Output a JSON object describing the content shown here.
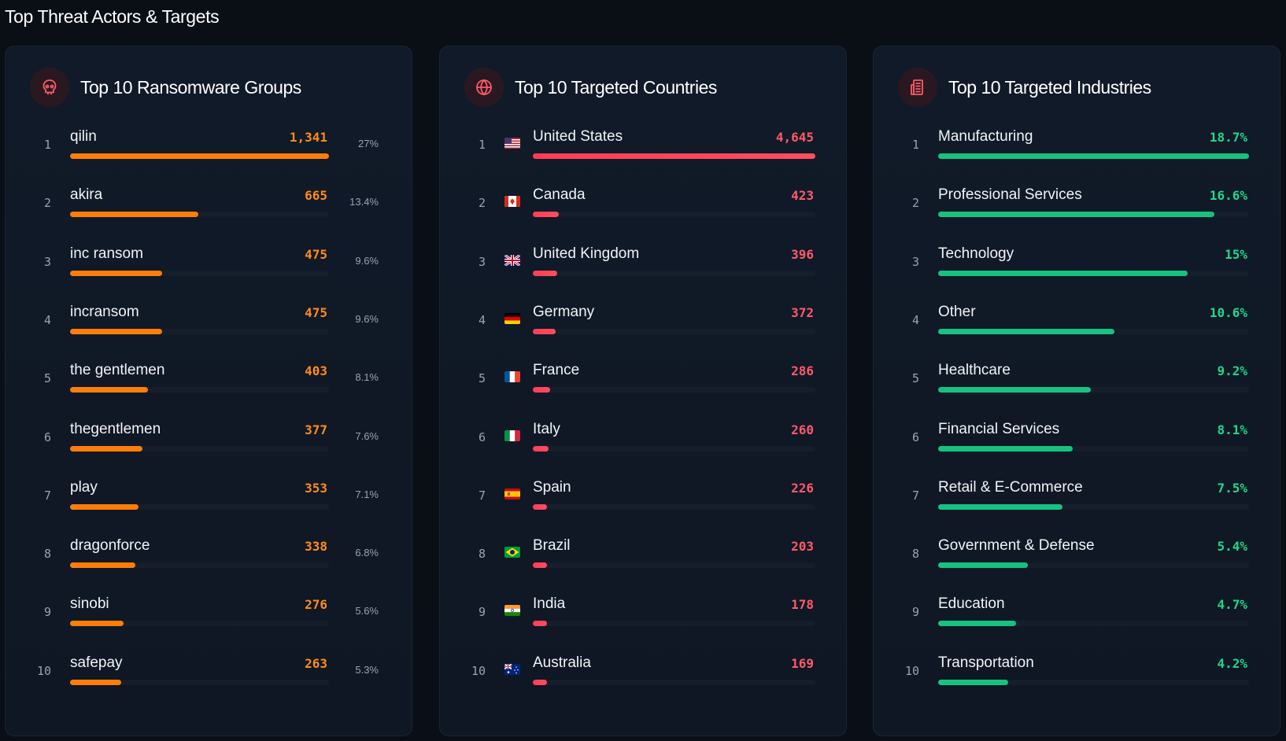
{
  "section_title": "Top Threat Actors & Targets",
  "panels": [
    {
      "key": "groups",
      "title": "Top 10 Ransomware Groups",
      "icon": "skull-icon",
      "theme": "orange",
      "max": 1341,
      "rows": [
        {
          "rank": "1",
          "label": "qilin",
          "value": "1,341",
          "num": 1341,
          "pct": "27%"
        },
        {
          "rank": "2",
          "label": "akira",
          "value": "665",
          "num": 665,
          "pct": "13.4%"
        },
        {
          "rank": "3",
          "label": "inc ransom",
          "value": "475",
          "num": 475,
          "pct": "9.6%"
        },
        {
          "rank": "4",
          "label": "incransom",
          "value": "475",
          "num": 475,
          "pct": "9.6%"
        },
        {
          "rank": "5",
          "label": "the gentlemen",
          "value": "403",
          "num": 403,
          "pct": "8.1%"
        },
        {
          "rank": "6",
          "label": "thegentlemen",
          "value": "377",
          "num": 377,
          "pct": "7.6%"
        },
        {
          "rank": "7",
          "label": "play",
          "value": "353",
          "num": 353,
          "pct": "7.1%"
        },
        {
          "rank": "8",
          "label": "dragonforce",
          "value": "338",
          "num": 338,
          "pct": "6.8%"
        },
        {
          "rank": "9",
          "label": "sinobi",
          "value": "276",
          "num": 276,
          "pct": "5.6%"
        },
        {
          "rank": "10",
          "label": "safepay",
          "value": "263",
          "num": 263,
          "pct": "5.3%"
        }
      ]
    },
    {
      "key": "countries",
      "title": "Top 10 Targeted Countries",
      "icon": "globe-icon",
      "theme": "red",
      "max": 4645,
      "rows": [
        {
          "rank": "1",
          "label": "United States",
          "value": "4,645",
          "num": 4645,
          "flag": "us"
        },
        {
          "rank": "2",
          "label": "Canada",
          "value": "423",
          "num": 423,
          "flag": "ca"
        },
        {
          "rank": "3",
          "label": "United Kingdom",
          "value": "396",
          "num": 396,
          "flag": "gb"
        },
        {
          "rank": "4",
          "label": "Germany",
          "value": "372",
          "num": 372,
          "flag": "de"
        },
        {
          "rank": "5",
          "label": "France",
          "value": "286",
          "num": 286,
          "flag": "fr"
        },
        {
          "rank": "6",
          "label": "Italy",
          "value": "260",
          "num": 260,
          "flag": "it"
        },
        {
          "rank": "7",
          "label": "Spain",
          "value": "226",
          "num": 226,
          "flag": "es"
        },
        {
          "rank": "8",
          "label": "Brazil",
          "value": "203",
          "num": 203,
          "flag": "br"
        },
        {
          "rank": "9",
          "label": "India",
          "value": "178",
          "num": 178,
          "flag": "in"
        },
        {
          "rank": "10",
          "label": "Australia",
          "value": "169",
          "num": 169,
          "flag": "au"
        }
      ]
    },
    {
      "key": "industries",
      "title": "Top 10 Targeted Industries",
      "icon": "building-icon",
      "theme": "green",
      "max": 18.7,
      "rows": [
        {
          "rank": "1",
          "label": "Manufacturing",
          "value": "18.7%",
          "num": 18.7
        },
        {
          "rank": "2",
          "label": "Professional Services",
          "value": "16.6%",
          "num": 16.6
        },
        {
          "rank": "3",
          "label": "Technology",
          "value": "15%",
          "num": 15
        },
        {
          "rank": "4",
          "label": "Other",
          "value": "10.6%",
          "num": 10.6
        },
        {
          "rank": "5",
          "label": "Healthcare",
          "value": "9.2%",
          "num": 9.2
        },
        {
          "rank": "6",
          "label": "Financial Services",
          "value": "8.1%",
          "num": 8.1
        },
        {
          "rank": "7",
          "label": "Retail & E-Commerce",
          "value": "7.5%",
          "num": 7.5
        },
        {
          "rank": "8",
          "label": "Government & Defense",
          "value": "5.4%",
          "num": 5.4
        },
        {
          "rank": "9",
          "label": "Education",
          "value": "4.7%",
          "num": 4.7
        },
        {
          "rank": "10",
          "label": "Transportation",
          "value": "4.2%",
          "num": 4.2
        }
      ]
    }
  ],
  "colors": {
    "orange": "#ff8c1a",
    "red": "#ff5a6a",
    "green": "#22d68a"
  }
}
